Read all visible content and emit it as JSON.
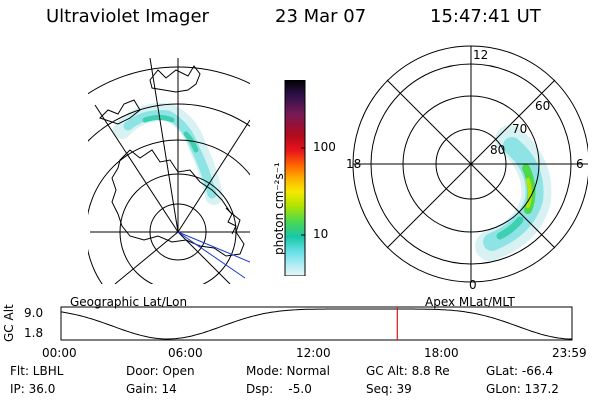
{
  "header": {
    "title": "Ultraviolet Imager",
    "date": "23 Mar 07",
    "time": "15:47:41 UT"
  },
  "maps": {
    "left_label": "Geographic Lat/Lon",
    "right_label": "Apex MLat/MLT",
    "mlt_labels": {
      "top": "12",
      "left": "18",
      "right": "6",
      "bottom": "0"
    },
    "lat_labels": [
      "60",
      "70",
      "80"
    ]
  },
  "colorbar": {
    "unit_label": "photon cm⁻²s⁻¹",
    "ticks": [
      "100",
      "10"
    ],
    "colors": [
      "#000000",
      "#30104a",
      "#7a1a55",
      "#b00a1c",
      "#e8141c",
      "#ff6a00",
      "#ffae00",
      "#f6e800",
      "#b4e400",
      "#4ed84e",
      "#18c8a8",
      "#6ce0e8",
      "#b8eef4",
      "#e8f6f8"
    ]
  },
  "altitude_plot": {
    "y_label": "GC Alt",
    "y_max": "9.0",
    "y_min": "1.8",
    "x_ticks": [
      "00:00",
      "06:00",
      "12:00",
      "18:00",
      "23:59"
    ],
    "current_time_hours": 15.795
  },
  "info": {
    "filter": "Flt: LBHL",
    "ip": "IP: 36.0",
    "door": "Door: Open",
    "gain": "Gain: 14",
    "mode": "Mode: Normal",
    "dsp": "Dsp:    -5.0",
    "gc_alt": "GC Alt: 8.8 Re",
    "seq": "Seq: 39",
    "glat": "GLat: -66.4",
    "glon": "GLon: 137.2"
  }
}
